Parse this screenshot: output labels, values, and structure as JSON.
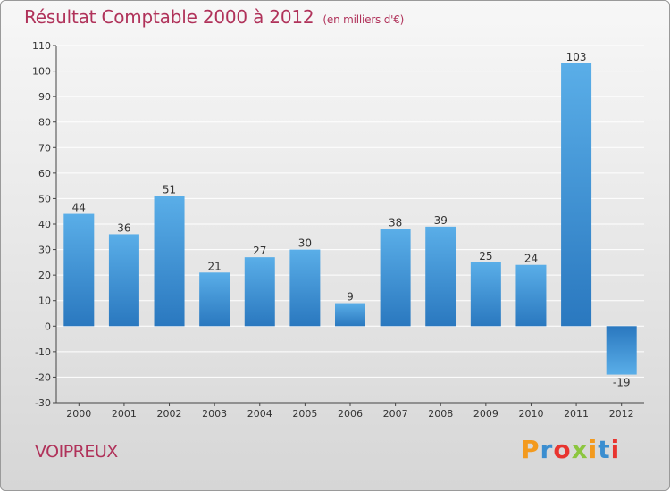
{
  "chart_data": {
    "type": "bar",
    "title": "Résultat Comptable 2000 à 2012",
    "subtitle": "(en milliers d'€)",
    "xlabel": "",
    "ylabel": "",
    "categories": [
      "2000",
      "2001",
      "2002",
      "2003",
      "2004",
      "2005",
      "2006",
      "2007",
      "2008",
      "2009",
      "2010",
      "2011",
      "2012"
    ],
    "values": [
      44,
      36,
      51,
      21,
      27,
      30,
      9,
      38,
      39,
      25,
      24,
      103,
      -19
    ],
    "value_labels": [
      "44",
      "36",
      "51",
      "21",
      "27",
      "30",
      "9",
      "38",
      "39",
      "25",
      "24",
      "103",
      "-19"
    ],
    "ylim": [
      -30,
      110
    ],
    "yticks": [
      -30,
      -20,
      -10,
      0,
      10,
      20,
      30,
      40,
      50,
      60,
      70,
      80,
      90,
      100,
      110
    ],
    "ytick_labels": [
      "-30",
      "-20",
      "-10",
      "0",
      "10",
      "20",
      "30",
      "40",
      "50",
      "60",
      "70",
      "80",
      "90",
      "100",
      "110"
    ],
    "grid": true,
    "legend": "none"
  },
  "footer": {
    "commune": "VOIPREUX",
    "brand": [
      "P",
      "r",
      "o",
      "x",
      "i",
      "t",
      "i"
    ]
  },
  "colors": {
    "title": "#b0325a",
    "bar_light": "#5aaee8",
    "bar_dark": "#2a78bf",
    "grid": "#ffffff",
    "axis": "#444444",
    "text": "#333333",
    "brand": [
      "#f39a1e",
      "#3b8ed0",
      "#e8342f",
      "#8cc63f",
      "#f39a1e",
      "#3b8ed0",
      "#e8342f"
    ]
  }
}
